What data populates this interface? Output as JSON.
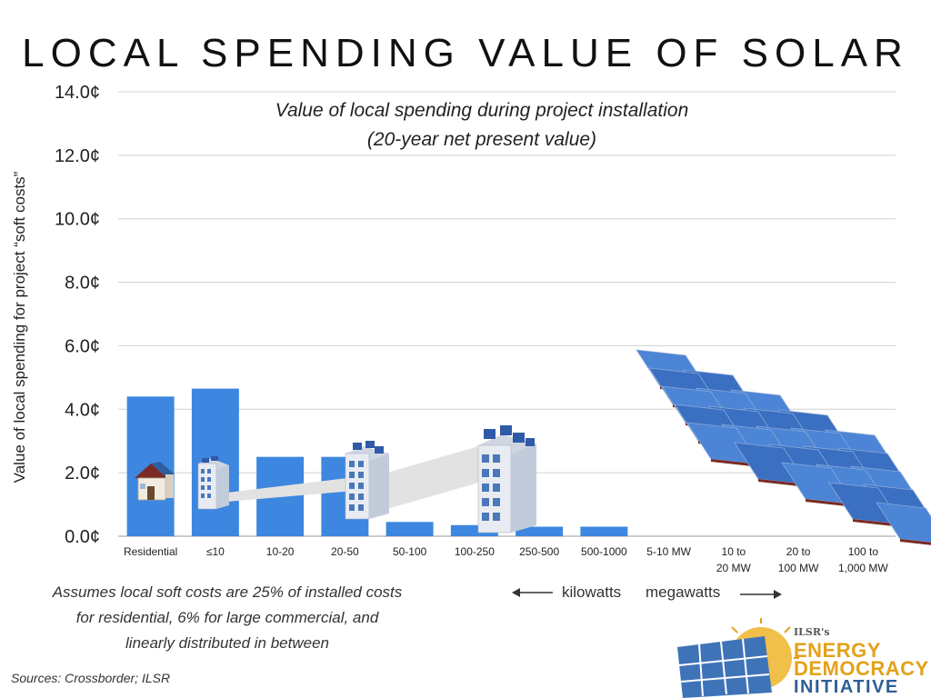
{
  "title": "LOCAL SPENDING VALUE OF SOLAR",
  "subtitle_line1": "Value of local spending during project installation",
  "subtitle_line2": "(20-year net present value)",
  "note_line1": "Assumes local soft costs are 25% of installed costs",
  "note_line2": "for residential, 6% for large commercial, and",
  "note_line3": "linearly distributed in between",
  "sources": "Sources: Crossborder; ILSR",
  "unit_kilowatts": "kilowatts",
  "unit_megawatts": "megawatts",
  "logo": {
    "small": "ILSR's",
    "line1": "ENERGY",
    "line2": "DEMOCRACY",
    "line3": "INITIATIVE"
  },
  "colors": {
    "bar": "#3d87e0",
    "grid": "#d0d0d0",
    "logo_gold": "#e3a21a",
    "logo_blue": "#2f5f98"
  },
  "chart_data": {
    "type": "bar",
    "title": "LOCAL SPENDING VALUE OF SOLAR",
    "subtitle": "Value of local spending during project installation (20-year net present value)",
    "ylabel": "Value of local spending for project “soft costs”",
    "xlabel": "",
    "ylim": [
      0,
      14
    ],
    "yticks": [
      0,
      2,
      4,
      6,
      8,
      10,
      12,
      14
    ],
    "ytick_labels": [
      "0.0¢",
      "2.0¢",
      "4.0¢",
      "6.0¢",
      "8.0¢",
      "10.0¢",
      "12.0¢",
      "14.0¢"
    ],
    "grid": true,
    "categories": [
      "Residential",
      "≤10",
      "10-20",
      "20-50",
      "50-100",
      "100-250",
      "250-500",
      "500-1000",
      "5-10 MW",
      "10 to\n20 MW",
      "20 to\n100 MW",
      "100 to\n1,000 MW"
    ],
    "values": [
      4.4,
      4.65,
      2.5,
      2.5,
      0.45,
      0.35,
      0.3,
      0.3,
      0,
      0,
      0,
      0
    ]
  }
}
